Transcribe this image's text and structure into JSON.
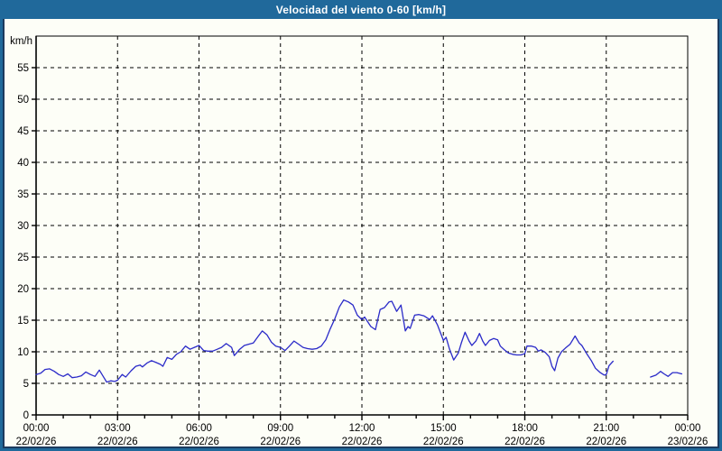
{
  "window": {
    "title": "Velocidad del viento 0-60 [km/h]",
    "title_bar_color": "#20699B",
    "frame_inner_color": "#1C3A5E",
    "background_color": "#FDFEF7"
  },
  "chart_data": {
    "type": "line",
    "title": "Velocidad del viento 0-60 [km/h]",
    "ylabel": "km/h",
    "xlabel": "",
    "ylim": [
      0,
      60
    ],
    "ytick_step": 5,
    "ytick_values": [
      0,
      5,
      10,
      15,
      20,
      25,
      30,
      35,
      40,
      45,
      50,
      55
    ],
    "xlim_hours": [
      0,
      24
    ],
    "x_major_ticks": [
      {
        "hour": 0,
        "time": "00:00",
        "date": "22/02/26"
      },
      {
        "hour": 3,
        "time": "03:00",
        "date": "22/02/26"
      },
      {
        "hour": 6,
        "time": "06:00",
        "date": "22/02/26"
      },
      {
        "hour": 9,
        "time": "09:00",
        "date": "22/02/26"
      },
      {
        "hour": 12,
        "time": "12:00",
        "date": "22/02/26"
      },
      {
        "hour": 15,
        "time": "15:00",
        "date": "22/02/26"
      },
      {
        "hour": 18,
        "time": "18:00",
        "date": "22/02/26"
      },
      {
        "hour": 21,
        "time": "21:00",
        "date": "22/02/26"
      },
      {
        "hour": 24,
        "time": "00:00",
        "date": "23/02/26"
      }
    ],
    "x_minor_tick_every_hours": 1,
    "grid": "dashed",
    "legend": "none",
    "line_color": "#2A2AC8",
    "axis_color": "#000000",
    "series": [
      {
        "name": "Velocidad del viento",
        "units": "km/h",
        "segments": [
          [
            [
              0.0,
              6.4
            ],
            [
              0.17,
              6.6
            ],
            [
              0.33,
              7.2
            ],
            [
              0.5,
              7.3
            ],
            [
              0.67,
              6.9
            ],
            [
              0.83,
              6.4
            ],
            [
              1.0,
              6.1
            ],
            [
              1.17,
              6.5
            ],
            [
              1.33,
              5.9
            ],
            [
              1.5,
              6.0
            ],
            [
              1.67,
              6.2
            ],
            [
              1.83,
              6.8
            ],
            [
              2.0,
              6.4
            ],
            [
              2.17,
              6.1
            ],
            [
              2.33,
              7.1
            ],
            [
              2.5,
              5.9
            ],
            [
              2.6,
              5.2
            ],
            [
              2.75,
              5.4
            ],
            [
              2.9,
              5.3
            ],
            [
              3.0,
              5.5
            ],
            [
              3.17,
              6.4
            ],
            [
              3.3,
              6.0
            ],
            [
              3.5,
              7.0
            ],
            [
              3.67,
              7.7
            ],
            [
              3.83,
              7.9
            ],
            [
              3.92,
              7.6
            ],
            [
              4.08,
              8.2
            ],
            [
              4.25,
              8.6
            ],
            [
              4.42,
              8.3
            ],
            [
              4.58,
              8.0
            ],
            [
              4.67,
              7.7
            ],
            [
              4.83,
              9.1
            ],
            [
              5.0,
              8.8
            ],
            [
              5.17,
              9.6
            ],
            [
              5.33,
              10.0
            ],
            [
              5.5,
              10.9
            ],
            [
              5.67,
              10.4
            ],
            [
              5.83,
              10.7
            ],
            [
              6.0,
              11.0
            ],
            [
              6.17,
              10.2
            ],
            [
              6.33,
              10.1
            ],
            [
              6.5,
              10.1
            ],
            [
              6.67,
              10.4
            ],
            [
              6.83,
              10.7
            ],
            [
              7.0,
              11.3
            ],
            [
              7.2,
              10.7
            ],
            [
              7.3,
              9.4
            ],
            [
              7.5,
              10.4
            ],
            [
              7.67,
              11.0
            ],
            [
              7.83,
              11.2
            ],
            [
              8.0,
              11.4
            ],
            [
              8.17,
              12.4
            ],
            [
              8.33,
              13.3
            ],
            [
              8.5,
              12.7
            ],
            [
              8.67,
              11.5
            ],
            [
              8.83,
              10.9
            ],
            [
              9.0,
              10.7
            ],
            [
              9.17,
              10.2
            ],
            [
              9.33,
              10.9
            ],
            [
              9.5,
              11.7
            ],
            [
              9.67,
              11.2
            ],
            [
              9.83,
              10.7
            ],
            [
              10.0,
              10.5
            ],
            [
              10.17,
              10.4
            ],
            [
              10.33,
              10.5
            ],
            [
              10.5,
              10.9
            ],
            [
              10.67,
              11.9
            ],
            [
              10.83,
              13.6
            ],
            [
              11.0,
              15.2
            ],
            [
              11.17,
              17.1
            ],
            [
              11.33,
              18.2
            ],
            [
              11.5,
              17.9
            ],
            [
              11.67,
              17.4
            ],
            [
              11.83,
              15.8
            ],
            [
              12.0,
              15.1
            ],
            [
              12.1,
              15.5
            ],
            [
              12.33,
              14.0
            ],
            [
              12.5,
              13.5
            ],
            [
              12.67,
              16.7
            ],
            [
              12.83,
              17.0
            ],
            [
              13.0,
              17.9
            ],
            [
              13.1,
              18.0
            ],
            [
              13.28,
              16.4
            ],
            [
              13.44,
              17.4
            ],
            [
              13.6,
              13.3
            ],
            [
              13.7,
              14.0
            ],
            [
              13.78,
              13.7
            ],
            [
              13.94,
              15.8
            ],
            [
              14.1,
              15.9
            ],
            [
              14.28,
              15.7
            ],
            [
              14.5,
              15.1
            ],
            [
              14.6,
              15.7
            ],
            [
              14.78,
              14.3
            ],
            [
              15.0,
              11.8
            ],
            [
              15.1,
              12.3
            ],
            [
              15.22,
              10.5
            ],
            [
              15.38,
              8.7
            ],
            [
              15.55,
              9.8
            ],
            [
              15.67,
              11.5
            ],
            [
              15.8,
              13.1
            ],
            [
              15.95,
              11.7
            ],
            [
              16.05,
              11.0
            ],
            [
              16.2,
              11.7
            ],
            [
              16.33,
              12.9
            ],
            [
              16.45,
              11.7
            ],
            [
              16.55,
              11.0
            ],
            [
              16.7,
              11.8
            ],
            [
              16.85,
              12.1
            ],
            [
              17.0,
              11.9
            ],
            [
              17.1,
              10.9
            ],
            [
              17.25,
              10.3
            ],
            [
              17.4,
              9.8
            ],
            [
              17.55,
              9.6
            ],
            [
              17.7,
              9.5
            ],
            [
              17.85,
              9.5
            ],
            [
              18.0,
              9.7
            ],
            [
              18.08,
              10.9
            ],
            [
              18.25,
              10.9
            ],
            [
              18.4,
              10.7
            ],
            [
              18.5,
              10.1
            ],
            [
              18.6,
              10.3
            ],
            [
              18.75,
              9.9
            ],
            [
              18.9,
              9.2
            ],
            [
              19.0,
              7.7
            ],
            [
              19.1,
              7.0
            ],
            [
              19.22,
              9.0
            ],
            [
              19.35,
              10.0
            ],
            [
              19.5,
              10.6
            ],
            [
              19.67,
              11.2
            ],
            [
              19.85,
              12.5
            ],
            [
              20.0,
              11.4
            ],
            [
              20.1,
              11.0
            ],
            [
              20.28,
              9.7
            ],
            [
              20.45,
              8.6
            ],
            [
              20.6,
              7.4
            ],
            [
              20.78,
              6.7
            ],
            [
              20.93,
              6.3
            ],
            [
              21.0,
              6.4
            ],
            [
              21.1,
              7.8
            ],
            [
              21.25,
              8.5
            ]
          ],
          [
            [
              22.63,
              6.0
            ],
            [
              22.83,
              6.3
            ],
            [
              23.0,
              6.9
            ],
            [
              23.13,
              6.5
            ],
            [
              23.28,
              6.1
            ],
            [
              23.44,
              6.7
            ],
            [
              23.6,
              6.7
            ],
            [
              23.78,
              6.5
            ]
          ]
        ]
      }
    ]
  }
}
